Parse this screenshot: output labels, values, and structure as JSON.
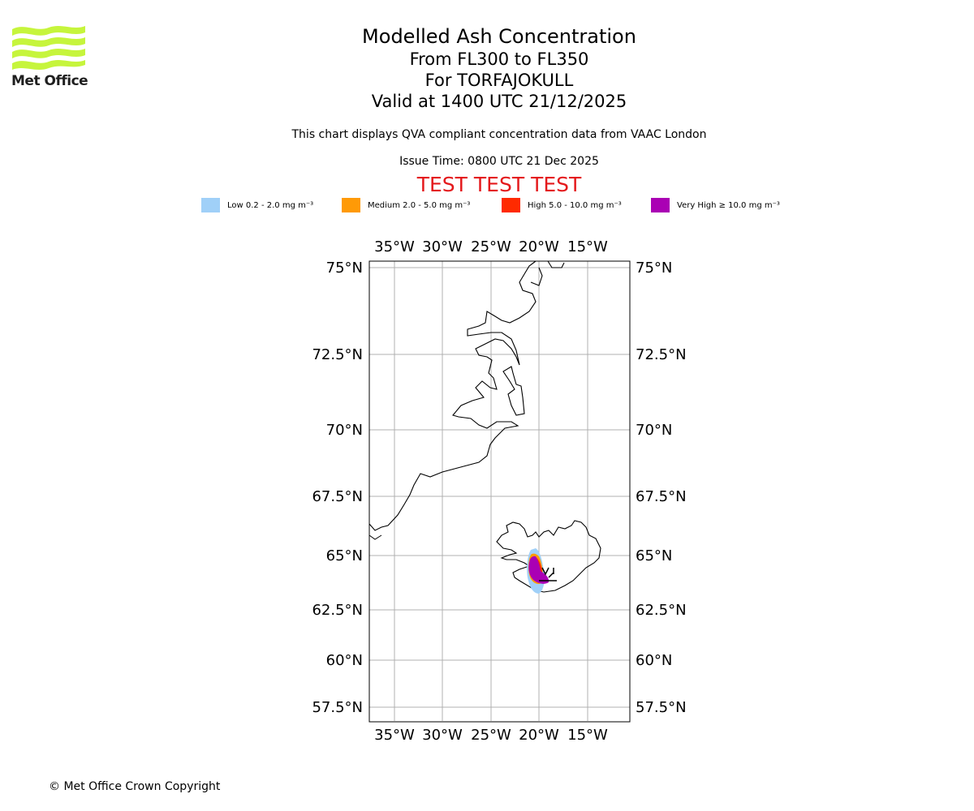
{
  "logo": {
    "text": "Met Office",
    "color": "#c6f53c"
  },
  "title": {
    "line1": "Modelled Ash Concentration",
    "line2": "From FL300 to FL350",
    "line3": "For TORFAJOKULL",
    "line4": "Valid at 1400 UTC 21/12/2025"
  },
  "subtitle": "This chart displays QVA compliant concentration data from VAAC London",
  "issue_time": "Issue Time: 0800 UTC 21 Dec 2025",
  "test_banner": "TEST TEST TEST",
  "legend": [
    {
      "label": "Low 0.2 - 2.0 mg m⁻³",
      "color": "#a0d0f8"
    },
    {
      "label": "Medium 2.0 - 5.0 mg m⁻³",
      "color": "#ff9a06"
    },
    {
      "label": "High 5.0 - 10.0 mg m⁻³",
      "color": "#ff2a00"
    },
    {
      "label": "Very High ≥ 10.0 mg m⁻³",
      "color": "#aa00b4"
    }
  ],
  "map": {
    "lon_ticks": [
      "35°W",
      "30°W",
      "25°W",
      "20°W",
      "15°W"
    ],
    "lat_ticks": [
      "75°N",
      "72.5°N",
      "70°N",
      "67.5°N",
      "65°N",
      "62.5°N",
      "60°N",
      "57.5°N"
    ]
  },
  "copyright": "© Met Office Crown Copyright"
}
